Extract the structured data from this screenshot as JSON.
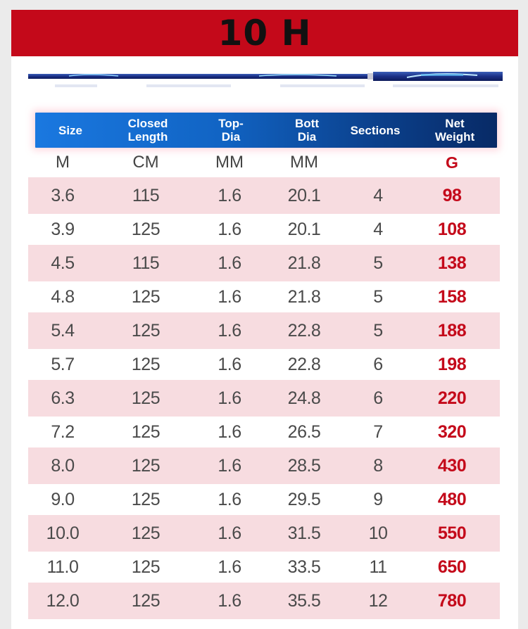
{
  "title": "10 H",
  "columns": [
    {
      "label_line1": "Size",
      "label_line2": "",
      "unit": "M"
    },
    {
      "label_line1": "Closed",
      "label_line2": "Length",
      "unit": "CM"
    },
    {
      "label_line1": "Top-",
      "label_line2": "Dia",
      "unit": "MM"
    },
    {
      "label_line1": "Bott",
      "label_line2": "Dia",
      "unit": "MM"
    },
    {
      "label_line1": "Sections",
      "label_line2": "",
      "unit": ""
    },
    {
      "label_line1": "Net",
      "label_line2": "Weight",
      "unit": "G"
    }
  ],
  "rows": [
    [
      "3.6",
      "115",
      "1.6",
      "20.1",
      "4",
      "98"
    ],
    [
      "3.9",
      "125",
      "1.6",
      "20.1",
      "4",
      "108"
    ],
    [
      "4.5",
      "115",
      "1.6",
      "21.8",
      "5",
      "138"
    ],
    [
      "4.8",
      "125",
      "1.6",
      "21.8",
      "5",
      "158"
    ],
    [
      "5.4",
      "125",
      "1.6",
      "22.8",
      "5",
      "188"
    ],
    [
      "5.7",
      "125",
      "1.6",
      "22.8",
      "6",
      "198"
    ],
    [
      "6.3",
      "125",
      "1.6",
      "24.8",
      "6",
      "220"
    ],
    [
      "7.2",
      "125",
      "1.6",
      "26.5",
      "7",
      "320"
    ],
    [
      "8.0",
      "125",
      "1.6",
      "28.5",
      "8",
      "430"
    ],
    [
      "9.0",
      "125",
      "1.6",
      "29.5",
      "9",
      "480"
    ],
    [
      "10.0",
      "125",
      "1.6",
      "31.5",
      "10",
      "550"
    ],
    [
      "11.0",
      "125",
      "1.6",
      "33.5",
      "11",
      "650"
    ],
    [
      "12.0",
      "125",
      "1.6",
      "35.5",
      "12",
      "780"
    ]
  ],
  "colors": {
    "banner": "#c4091a",
    "header_blue": "#1164c4",
    "row_shade": "#f7dce0",
    "weight_red": "#c4091a"
  },
  "rod_image": "fishing-rod-illustration"
}
